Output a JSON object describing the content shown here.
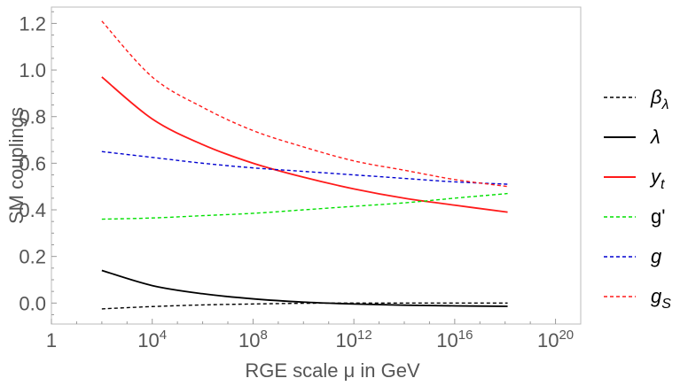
{
  "chart_data": {
    "type": "line",
    "title": "",
    "xlabel": "RGE scale μ in GeV",
    "ylabel": "SM couplings",
    "xscale": "log10",
    "xlim_log10": [
      0,
      21
    ],
    "ylim": [
      -0.09,
      1.27
    ],
    "grid": false,
    "legend_position": "right",
    "x_ticks": [
      {
        "log10": 0,
        "base": "1",
        "exp": ""
      },
      {
        "log10": 4,
        "base": "10",
        "exp": "4"
      },
      {
        "log10": 8,
        "base": "10",
        "exp": "8"
      },
      {
        "log10": 12,
        "base": "10",
        "exp": "12"
      },
      {
        "log10": 16,
        "base": "10",
        "exp": "16"
      },
      {
        "log10": 20,
        "base": "10",
        "exp": "20"
      }
    ],
    "y_ticks": [
      {
        "value": 0.0,
        "label": "0.0"
      },
      {
        "value": 0.2,
        "label": "0.2"
      },
      {
        "value": 0.4,
        "label": "0.4"
      },
      {
        "value": 0.6,
        "label": "0.6"
      },
      {
        "value": 0.8,
        "label": "0.8"
      },
      {
        "value": 1.0,
        "label": "1.0"
      },
      {
        "value": 1.2,
        "label": "1.2"
      }
    ],
    "x_log10": [
      2,
      4,
      6,
      8,
      10,
      12,
      14,
      16,
      18.1
    ],
    "series": [
      {
        "name": "beta_lambda",
        "legend_main": "β",
        "legend_sub": "λ",
        "color": "#000000",
        "dashed": true,
        "values": [
          -0.025,
          -0.015,
          -0.008,
          -0.004,
          -0.001,
          0.0,
          0.0,
          0.0,
          0.0
        ]
      },
      {
        "name": "lambda",
        "legend_main": "λ",
        "legend_sub": "",
        "color": "#000000",
        "dashed": false,
        "values": [
          0.14,
          0.075,
          0.04,
          0.018,
          0.004,
          -0.004,
          -0.009,
          -0.012,
          -0.014
        ]
      },
      {
        "name": "y_t",
        "legend_main": "y",
        "legend_sub": "t",
        "color": "#ff1a1a",
        "dashed": false,
        "values": [
          0.97,
          0.79,
          0.68,
          0.6,
          0.54,
          0.49,
          0.45,
          0.42,
          0.39
        ]
      },
      {
        "name": "g_prime",
        "legend_main": "g'",
        "legend_sub": "",
        "color": "#00e000",
        "dashed": true,
        "values": [
          0.36,
          0.365,
          0.375,
          0.385,
          0.4,
          0.415,
          0.43,
          0.45,
          0.47
        ]
      },
      {
        "name": "g",
        "legend_main": "g",
        "legend_sub": "",
        "color": "#0000d0",
        "dashed": true,
        "values": [
          0.65,
          0.625,
          0.6,
          0.58,
          0.565,
          0.55,
          0.535,
          0.52,
          0.51
        ]
      },
      {
        "name": "g_S",
        "legend_main": "g",
        "legend_sub": "S",
        "color": "#ff1a1a",
        "dashed": true,
        "values": [
          1.21,
          0.97,
          0.84,
          0.74,
          0.67,
          0.61,
          0.57,
          0.53,
          0.5
        ]
      }
    ]
  }
}
